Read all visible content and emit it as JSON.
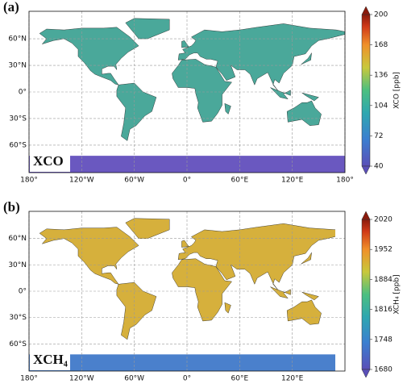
{
  "panels": [
    {
      "label": "(a)",
      "gas_label": "XCO",
      "lon_ticks": [
        {
          "value": -180,
          "label": "180°"
        },
        {
          "value": -120,
          "label": "120°W"
        },
        {
          "value": -60,
          "label": "60°W"
        },
        {
          "value": 0,
          "label": "0°"
        },
        {
          "value": 60,
          "label": "60°E"
        },
        {
          "value": 120,
          "label": "120°E"
        },
        {
          "value": 180,
          "label": "180°"
        }
      ],
      "lat_ticks": [
        {
          "value": 60,
          "label": "60°N"
        },
        {
          "value": 30,
          "label": "30°N"
        },
        {
          "value": 0,
          "label": "0°"
        },
        {
          "value": -30,
          "label": "30°S"
        },
        {
          "value": -60,
          "label": "60°S"
        }
      ],
      "colorbar": {
        "label": "XCO [ppb]",
        "lim": [
          40,
          200
        ],
        "ticks": [
          40,
          72,
          104,
          136,
          168,
          200
        ]
      }
    },
    {
      "label": "(b)",
      "gas_label": "XCH₄",
      "lon_ticks": [
        {
          "value": -180,
          "label": "180°"
        },
        {
          "value": -120,
          "label": "120°W"
        },
        {
          "value": -60,
          "label": "60°W"
        },
        {
          "value": 0,
          "label": "0°"
        },
        {
          "value": 60,
          "label": "60°E"
        },
        {
          "value": 120,
          "label": "120°E"
        }
      ],
      "lat_ticks": [
        {
          "value": 60,
          "label": "60°N"
        },
        {
          "value": 30,
          "label": "30°N"
        },
        {
          "value": 0,
          "label": "0°"
        },
        {
          "value": -30,
          "label": "30°S"
        },
        {
          "value": -60,
          "label": "60°S"
        }
      ],
      "colorbar": {
        "label": "XCH₄ [ppb]",
        "lim": [
          1680,
          2020
        ],
        "ticks": [
          1680,
          1748,
          1816,
          1884,
          1952,
          2020
        ]
      }
    }
  ]
}
